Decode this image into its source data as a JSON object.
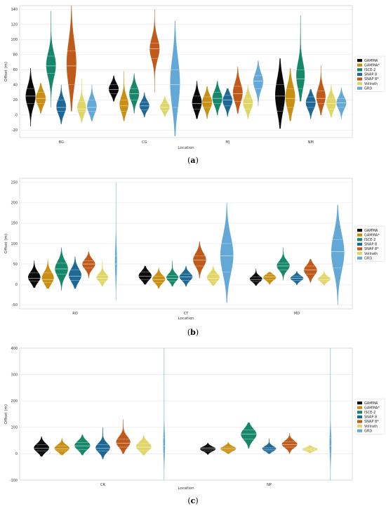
{
  "colors": {
    "GAMMA": "#0a0a0a",
    "GAMMA*": "#c98f12",
    "ISCE-2": "#17876a",
    "SNAP 8": "#1d6896",
    "SNAP 8*": "#c05a1a",
    "Vollrath": "#e0d668",
    "GRD": "#63a8d6"
  },
  "chart_data": [
    {
      "type": "violin",
      "caption": "(a)",
      "xlabel": "Location",
      "ylabel": "Offset (m)",
      "ylim": [
        -30,
        145
      ],
      "yticks": [
        -20,
        0,
        20,
        40,
        60,
        80,
        100,
        120,
        140
      ],
      "grid": true,
      "legend_position": "right",
      "legend": [
        "GAMMA",
        "GAMMA*",
        "ISCE-2",
        "SNAP 8",
        "SNAP 8*",
        "Vollrath",
        "GRD"
      ],
      "categories": [
        "BG",
        "CG",
        "MJ",
        "NM"
      ],
      "groups": [
        {
          "location": "BG",
          "violins": [
            {
              "series": "GAMMA",
              "min": -15,
              "max": 62,
              "q1": 15,
              "median": 25,
              "q3": 35
            },
            {
              "series": "GAMMA*",
              "min": 2,
              "max": 42,
              "q1": 15,
              "median": 22,
              "q3": 30
            },
            {
              "series": "ISCE-2",
              "min": 10,
              "max": 138,
              "q1": 55,
              "median": 65,
              "q3": 78
            },
            {
              "series": "SNAP 8",
              "min": -12,
              "max": 40,
              "q1": 5,
              "median": 10,
              "q3": 20
            },
            {
              "series": "SNAP 8*",
              "min": 5,
              "max": 145,
              "q1": 40,
              "median": 65,
              "q3": 85
            },
            {
              "series": "Vollrath",
              "min": -10,
              "max": 48,
              "q1": 5,
              "median": 8,
              "q3": 18
            },
            {
              "series": "GRD",
              "min": -8,
              "max": 40,
              "q1": 5,
              "median": 10,
              "q3": 20
            }
          ]
        },
        {
          "location": "CG",
          "violins": [
            {
              "series": "GAMMA",
              "min": 18,
              "max": 52,
              "q1": 28,
              "median": 34,
              "q3": 40
            },
            {
              "series": "GAMMA*",
              "min": -8,
              "max": 58,
              "q1": 5,
              "median": 12,
              "q3": 20
            },
            {
              "series": "ISCE-2",
              "min": 2,
              "max": 55,
              "q1": 20,
              "median": 28,
              "q3": 35
            },
            {
              "series": "SNAP 8",
              "min": -3,
              "max": 30,
              "q1": 7,
              "median": 12,
              "q3": 17
            },
            {
              "series": "SNAP 8*",
              "min": 30,
              "max": 140,
              "q1": 75,
              "median": 88,
              "q3": 95
            },
            {
              "series": "Vollrath",
              "min": -2,
              "max": 25,
              "q1": 6,
              "median": 10,
              "q3": 15
            },
            {
              "series": "GRD",
              "min": -28,
              "max": 125,
              "q1": 10,
              "median": 40,
              "q3": 60
            }
          ]
        },
        {
          "location": "MJ",
          "violins": [
            {
              "series": "GAMMA",
              "min": -5,
              "max": 45,
              "q1": 8,
              "median": 15,
              "q3": 25
            },
            {
              "series": "GAMMA*",
              "min": -5,
              "max": 38,
              "q1": 10,
              "median": 17,
              "q3": 24
            },
            {
              "series": "ISCE-2",
              "min": 0,
              "max": 45,
              "q1": 15,
              "median": 22,
              "q3": 30
            },
            {
              "series": "SNAP 8",
              "min": -2,
              "max": 35,
              "q1": 12,
              "median": 20,
              "q3": 26
            },
            {
              "series": "SNAP 8*",
              "min": 2,
              "max": 64,
              "q1": 18,
              "median": 28,
              "q3": 38
            },
            {
              "series": "Vollrath",
              "min": -5,
              "max": 40,
              "q1": 8,
              "median": 15,
              "q3": 22
            },
            {
              "series": "GRD",
              "min": 12,
              "max": 72,
              "q1": 35,
              "median": 45,
              "q3": 52
            }
          ]
        },
        {
          "location": "NM",
          "violins": [
            {
              "series": "GAMMA",
              "min": -18,
              "max": 75,
              "q1": 5,
              "median": 25,
              "q3": 40
            },
            {
              "series": "GAMMA*",
              "min": -8,
              "max": 62,
              "q1": 10,
              "median": 22,
              "q3": 35
            },
            {
              "series": "ISCE-2",
              "min": 18,
              "max": 132,
              "q1": 35,
              "median": 48,
              "q3": 60
            },
            {
              "series": "SNAP 8",
              "min": -5,
              "max": 34,
              "q1": 10,
              "median": 17,
              "q3": 24
            },
            {
              "series": "SNAP 8*",
              "min": 0,
              "max": 66,
              "q1": 15,
              "median": 22,
              "q3": 32
            },
            {
              "series": "Vollrath",
              "min": -3,
              "max": 40,
              "q1": 8,
              "median": 15,
              "q3": 22
            },
            {
              "series": "GRD",
              "min": -5,
              "max": 36,
              "q1": 10,
              "median": 16,
              "q3": 22
            }
          ]
        }
      ]
    },
    {
      "type": "violin",
      "caption": "(b)",
      "xlabel": "Location",
      "ylabel": "Offset (m)",
      "ylim": [
        -60,
        260
      ],
      "yticks": [
        -50,
        0,
        50,
        100,
        150,
        200,
        250
      ],
      "grid": true,
      "legend_position": "right",
      "legend": [
        "GAMMA",
        "GAMMA*",
        "ISCE-2",
        "SNAP 8",
        "SNAP 8*",
        "Vollrath",
        "GRD"
      ],
      "categories": [
        "RO",
        "CT",
        "MD"
      ],
      "groups": [
        {
          "location": "RO",
          "violins": [
            {
              "series": "GAMMA",
              "min": -8,
              "max": 58,
              "q1": 8,
              "median": 15,
              "q3": 28
            },
            {
              "series": "GAMMA*",
              "min": -10,
              "max": 62,
              "q1": 5,
              "median": 12,
              "q3": 28
            },
            {
              "series": "ISCE-2",
              "min": -15,
              "max": 90,
              "q1": 25,
              "median": 38,
              "q3": 52
            },
            {
              "series": "SNAP 8",
              "min": -10,
              "max": 68,
              "q1": 10,
              "median": 20,
              "q3": 35
            },
            {
              "series": "SNAP 8*",
              "min": 15,
              "max": 80,
              "q1": 40,
              "median": 50,
              "q3": 58
            },
            {
              "series": "Vollrath",
              "min": -5,
              "max": 60,
              "q1": 8,
              "median": 15,
              "q3": 22
            },
            {
              "series": "GRD",
              "min": -40,
              "max": 250,
              "q1": 20,
              "median": 50,
              "q3": 70
            }
          ]
        },
        {
          "location": "CT",
          "violins": [
            {
              "series": "GAMMA",
              "min": 0,
              "max": 45,
              "q1": 12,
              "median": 20,
              "q3": 30
            },
            {
              "series": "GAMMA*",
              "min": -10,
              "max": 40,
              "q1": 5,
              "median": 12,
              "q3": 20
            },
            {
              "series": "ISCE-2",
              "min": -5,
              "max": 58,
              "q1": 8,
              "median": 15,
              "q3": 22
            },
            {
              "series": "SNAP 8",
              "min": -5,
              "max": 45,
              "q1": 10,
              "median": 18,
              "q3": 25
            },
            {
              "series": "SNAP 8*",
              "min": 15,
              "max": 105,
              "q1": 45,
              "median": 60,
              "q3": 70
            },
            {
              "series": "Vollrath",
              "min": -3,
              "max": 45,
              "q1": 8,
              "median": 15,
              "q3": 25
            },
            {
              "series": "GRD",
              "min": -45,
              "max": 200,
              "q1": 30,
              "median": 70,
              "q3": 100
            }
          ]
        },
        {
          "location": "MD",
          "violins": [
            {
              "series": "GAMMA",
              "min": -3,
              "max": 38,
              "q1": 7,
              "median": 12,
              "q3": 18
            },
            {
              "series": "GAMMA*",
              "min": 0,
              "max": 30,
              "q1": 12,
              "median": 18,
              "q3": 24
            },
            {
              "series": "ISCE-2",
              "min": 10,
              "max": 90,
              "q1": 35,
              "median": 45,
              "q3": 52
            },
            {
              "series": "SNAP 8",
              "min": -2,
              "max": 32,
              "q1": 10,
              "median": 15,
              "q3": 20
            },
            {
              "series": "SNAP 8*",
              "min": 5,
              "max": 62,
              "q1": 25,
              "median": 35,
              "q3": 45
            },
            {
              "series": "Vollrath",
              "min": -2,
              "max": 35,
              "q1": 8,
              "median": 12,
              "q3": 18
            },
            {
              "series": "GRD",
              "min": -50,
              "max": 195,
              "q1": 40,
              "median": 80,
              "q3": 110
            }
          ]
        }
      ]
    },
    {
      "type": "violin",
      "caption": "(c)",
      "xlabel": "Location",
      "ylabel": "Offset (m)",
      "ylim": [
        -100,
        400
      ],
      "yticks": [
        -100,
        0,
        100,
        200,
        300,
        400
      ],
      "grid": true,
      "legend_position": "right",
      "legend": [
        "GAMMA",
        "GAMMA*",
        "ISCE-2",
        "SNAP 8",
        "SNAP 8*",
        "Vollrath",
        "GRD"
      ],
      "categories": [
        "CR",
        "NP"
      ],
      "groups": [
        {
          "location": "CR",
          "violins": [
            {
              "series": "GAMMA",
              "min": -10,
              "max": 65,
              "q1": 10,
              "median": 20,
              "q3": 35
            },
            {
              "series": "GAMMA*",
              "min": -5,
              "max": 60,
              "q1": 10,
              "median": 18,
              "q3": 30
            },
            {
              "series": "ISCE-2",
              "min": -5,
              "max": 72,
              "q1": 15,
              "median": 30,
              "q3": 42
            },
            {
              "series": "SNAP 8",
              "min": -20,
              "max": 100,
              "q1": 10,
              "median": 20,
              "q3": 35
            },
            {
              "series": "SNAP 8*",
              "min": 0,
              "max": 130,
              "q1": 25,
              "median": 40,
              "q3": 55
            },
            {
              "series": "Vollrath",
              "min": -5,
              "max": 70,
              "q1": 12,
              "median": 25,
              "q3": 38
            },
            {
              "series": "GRD",
              "min": -100,
              "max": 400,
              "q1": 0,
              "median": 30,
              "q3": 60
            }
          ]
        },
        {
          "location": "NP",
          "violins": [
            {
              "series": "GAMMA",
              "min": -3,
              "max": 40,
              "q1": 10,
              "median": 18,
              "q3": 24
            },
            {
              "series": "GAMMA*",
              "min": 0,
              "max": 42,
              "q1": 10,
              "median": 18,
              "q3": 25
            },
            {
              "series": "ISCE-2",
              "min": 20,
              "max": 118,
              "q1": 55,
              "median": 75,
              "q3": 90
            },
            {
              "series": "SNAP 8",
              "min": 0,
              "max": 58,
              "q1": 10,
              "median": 17,
              "q3": 24
            },
            {
              "series": "SNAP 8*",
              "min": 0,
              "max": 78,
              "q1": 25,
              "median": 35,
              "q3": 45
            },
            {
              "series": "Vollrath",
              "min": 2,
              "max": 32,
              "q1": 12,
              "median": 17,
              "q3": 22
            },
            {
              "series": "GRD",
              "min": -100,
              "max": 400,
              "q1": 0,
              "median": 30,
              "q3": 60
            }
          ]
        }
      ]
    }
  ]
}
